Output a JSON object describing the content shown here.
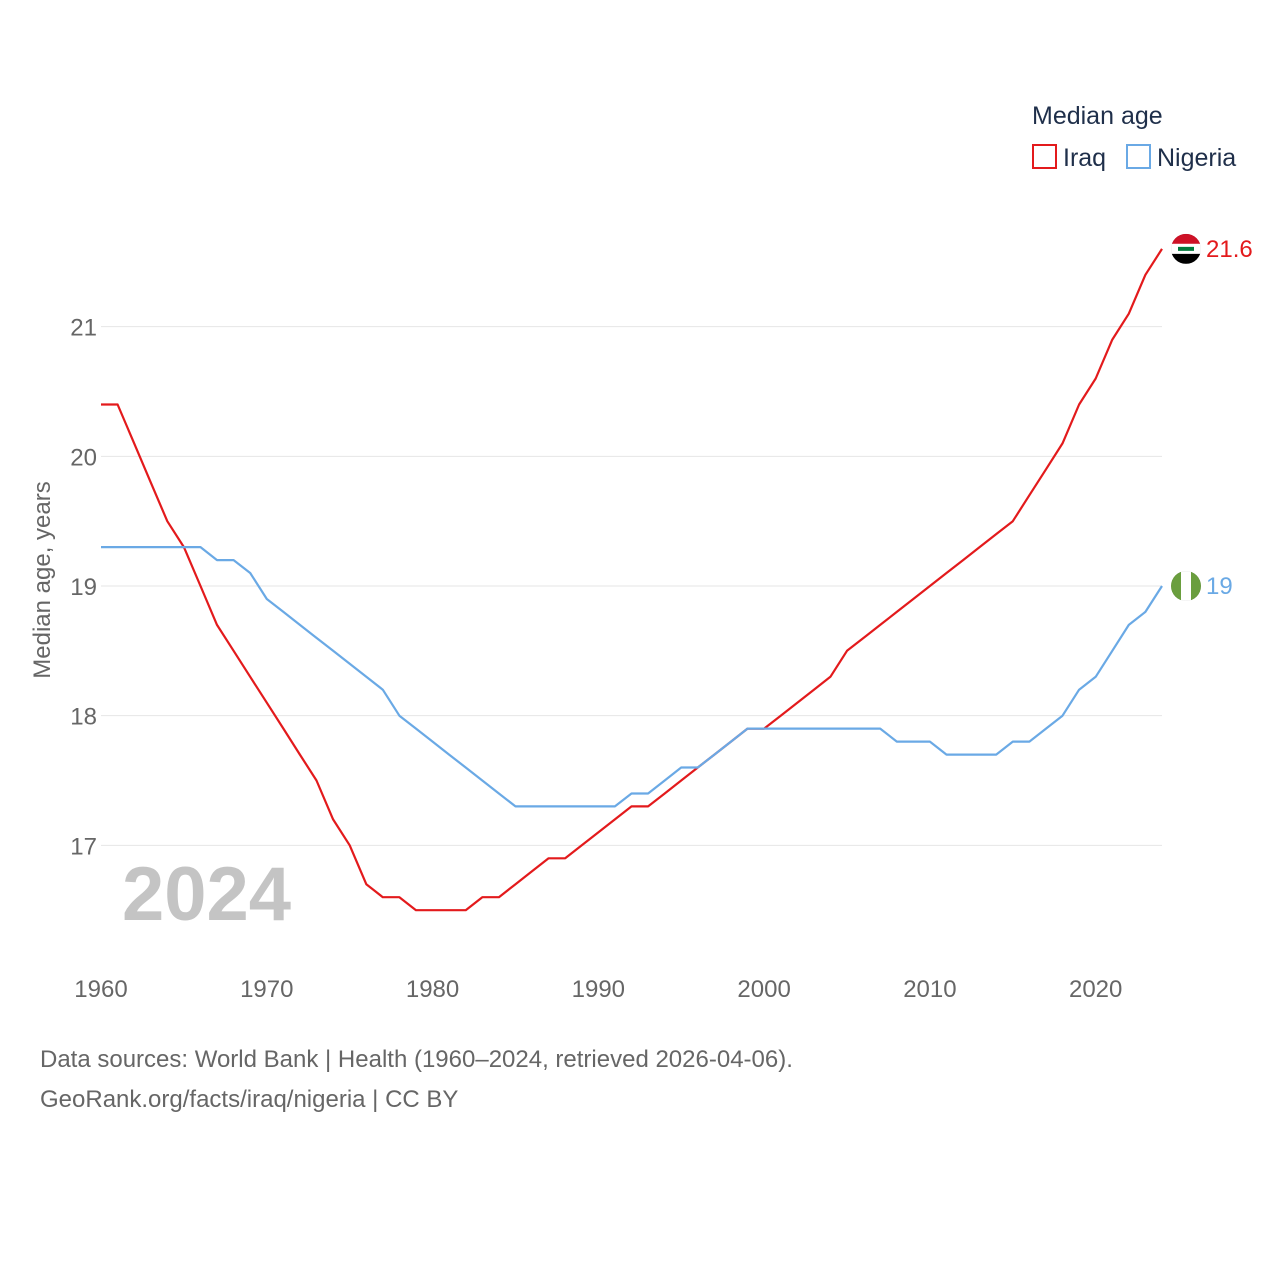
{
  "chart_data": {
    "type": "line",
    "legend_title": "Median age",
    "ylabel": "Median age, years",
    "year_label": "2024",
    "xlim": [
      1960,
      2024
    ],
    "ylim": [
      16.0,
      22.0
    ],
    "x_ticks": [
      1960,
      1970,
      1980,
      1990,
      2000,
      2010,
      2020
    ],
    "x_tick_labels": [
      "1960",
      "1970",
      "1980",
      "1990",
      "2000",
      "2010",
      "2020"
    ],
    "y_ticks": [
      17,
      18,
      19,
      20,
      21
    ],
    "y_tick_labels": [
      "17",
      "18",
      "19",
      "20",
      "21"
    ],
    "legend_position": "top-right",
    "x": [
      1960,
      1961,
      1962,
      1963,
      1964,
      1965,
      1966,
      1967,
      1968,
      1969,
      1970,
      1971,
      1972,
      1973,
      1974,
      1975,
      1976,
      1977,
      1978,
      1979,
      1980,
      1981,
      1982,
      1983,
      1984,
      1985,
      1986,
      1987,
      1988,
      1989,
      1990,
      1991,
      1992,
      1993,
      1994,
      1995,
      1996,
      1997,
      1998,
      1999,
      2000,
      2001,
      2002,
      2003,
      2004,
      2005,
      2006,
      2007,
      2008,
      2009,
      2010,
      2011,
      2012,
      2013,
      2014,
      2015,
      2016,
      2017,
      2018,
      2019,
      2020,
      2021,
      2022,
      2023,
      2024
    ],
    "series": [
      {
        "name": "Iraq",
        "color": "#e31a1c",
        "end_label": "21.6",
        "values": [
          20.4,
          20.4,
          20.1,
          19.8,
          19.5,
          19.3,
          19.0,
          18.7,
          18.5,
          18.3,
          18.1,
          17.9,
          17.7,
          17.5,
          17.2,
          17.0,
          16.7,
          16.6,
          16.6,
          16.5,
          16.5,
          16.5,
          16.5,
          16.6,
          16.6,
          16.7,
          16.8,
          16.9,
          16.9,
          17.0,
          17.1,
          17.2,
          17.3,
          17.3,
          17.4,
          17.5,
          17.6,
          17.7,
          17.8,
          17.9,
          17.9,
          18.0,
          18.1,
          18.2,
          18.3,
          18.5,
          18.6,
          18.7,
          18.8,
          18.9,
          19.0,
          19.1,
          19.2,
          19.3,
          19.4,
          19.5,
          19.7,
          19.9,
          20.1,
          20.4,
          20.6,
          20.9,
          21.1,
          21.4,
          21.6
        ]
      },
      {
        "name": "Nigeria",
        "color": "#6aa9e5",
        "end_label": "19",
        "values": [
          19.3,
          19.3,
          19.3,
          19.3,
          19.3,
          19.3,
          19.3,
          19.2,
          19.2,
          19.1,
          18.9,
          18.8,
          18.7,
          18.6,
          18.5,
          18.4,
          18.3,
          18.2,
          18.0,
          17.9,
          17.8,
          17.7,
          17.6,
          17.5,
          17.4,
          17.3,
          17.3,
          17.3,
          17.3,
          17.3,
          17.3,
          17.3,
          17.4,
          17.4,
          17.5,
          17.6,
          17.6,
          17.7,
          17.8,
          17.9,
          17.9,
          17.9,
          17.9,
          17.9,
          17.9,
          17.9,
          17.9,
          17.9,
          17.8,
          17.8,
          17.8,
          17.7,
          17.7,
          17.7,
          17.7,
          17.8,
          17.8,
          17.9,
          18.0,
          18.2,
          18.3,
          18.5,
          18.7,
          18.8,
          19.0
        ]
      }
    ]
  },
  "footer": {
    "line1": "Data sources: World Bank | Health (1960–2024, retrieved 2026-04-06).",
    "line2": "GeoRank.org/facts/iraq/nigeria | CC BY"
  },
  "colors": {
    "grid": "#e6e6e6",
    "text": "#666666",
    "legend_text": "#1f2f4a",
    "iraq_flag_red": "#ce1126",
    "iraq_flag_black": "#000000",
    "iraq_flag_green": "#007a3d",
    "nigeria_flag_green": "#6a9e3e"
  },
  "icons": {
    "iraq": "iraq-flag-icon",
    "nigeria": "nigeria-flag-icon"
  }
}
